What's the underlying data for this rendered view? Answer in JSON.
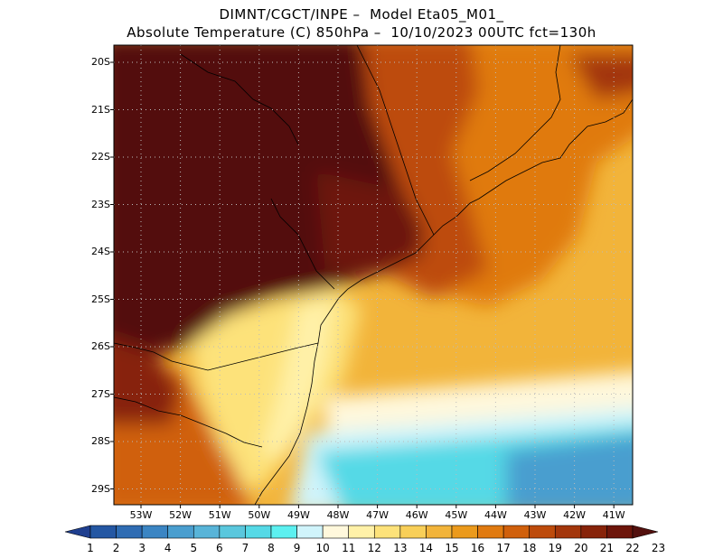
{
  "title_line1": "DIMNT/CGCT/INPE –  Model Eta05_M01_",
  "title_line2": "Absolute Temperature (C) 850hPa –  10/10/2023 00UTC fct=130h",
  "lat_labels": [
    "20S",
    "21S",
    "22S",
    "23S",
    "24S",
    "25S",
    "26S",
    "27S",
    "28S",
    "29S"
  ],
  "lon_labels": [
    "53W",
    "52W",
    "51W",
    "50W",
    "49W",
    "48W",
    "47W",
    "46W",
    "45W",
    "44W",
    "43W",
    "42W",
    "41W"
  ],
  "colorbar": {
    "labels": [
      "1",
      "2",
      "3",
      "4",
      "5",
      "6",
      "7",
      "8",
      "9",
      "10",
      "11",
      "12",
      "13",
      "14",
      "15",
      "16",
      "17",
      "18",
      "19",
      "20",
      "21",
      "22",
      "23"
    ],
    "colors": [
      "#1f3f8f",
      "#2457a3",
      "#2f6cb3",
      "#3b85c3",
      "#4a9ecf",
      "#58b4d8",
      "#5ac7dd",
      "#55d9e6",
      "#5cf0f0",
      "#d0f4fb",
      "#fff8dc",
      "#fff1a8",
      "#fde27a",
      "#f8cf58",
      "#f2b43a",
      "#eb9a1c",
      "#e07a10",
      "#d0600c",
      "#bd4b0b",
      "#a3360b",
      "#872309",
      "#6d150a",
      "#53100e"
    ]
  },
  "grid": "dotted",
  "projection": "lat-lon"
}
